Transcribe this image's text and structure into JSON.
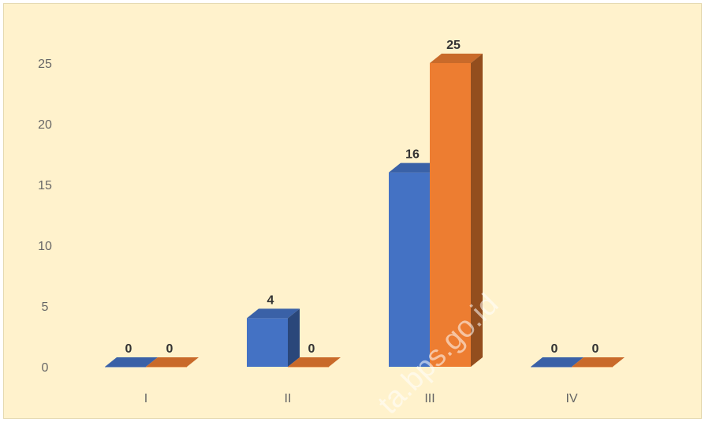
{
  "chart_data": {
    "type": "bar",
    "style": "3d-clustered-column",
    "categories": [
      "I",
      "II",
      "III",
      "IV"
    ],
    "series": [
      {
        "values": [
          0,
          4,
          16,
          0
        ],
        "color": "#4472c4"
      },
      {
        "values": [
          0,
          0,
          25,
          0
        ],
        "color": "#ed7d31"
      }
    ],
    "data_labels": true,
    "ylim": [
      0,
      25
    ],
    "yticks": [
      0,
      5,
      10,
      15,
      20,
      25
    ],
    "grid": false,
    "legend": "none",
    "background": "#fff2cc"
  },
  "watermark": "ta.bps.go.id"
}
